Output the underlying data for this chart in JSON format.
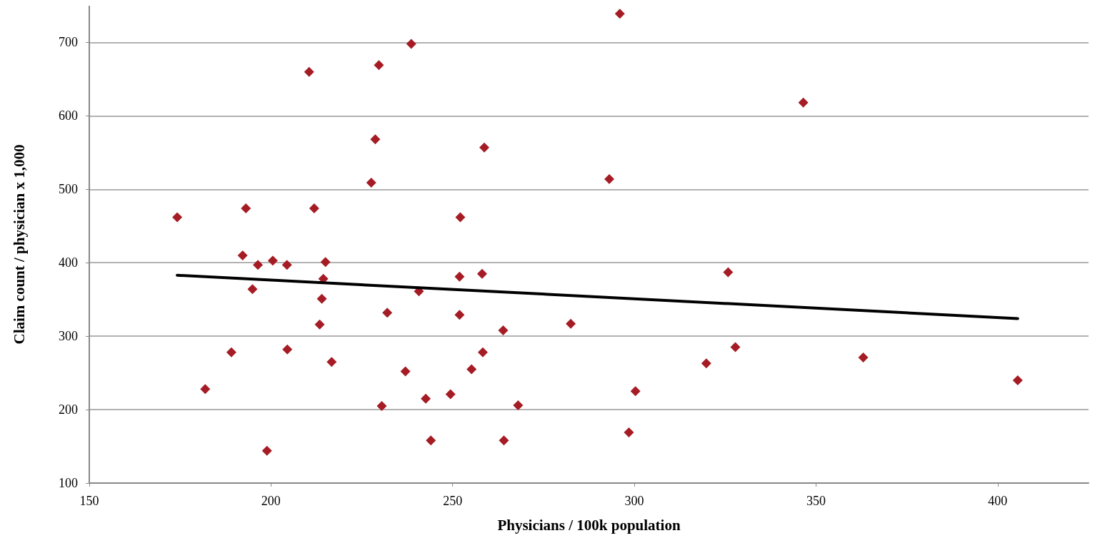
{
  "chart_data": {
    "type": "scatter",
    "xlabel": "Physicians / 100k population",
    "ylabel": "Claim count / physician x 1,000",
    "xlim": [
      150,
      425
    ],
    "xticks": [
      150,
      200,
      250,
      300,
      350,
      400
    ],
    "ylim": [
      100,
      750
    ],
    "yticks": [
      100,
      200,
      300,
      400,
      500,
      600,
      700
    ],
    "grid": "y",
    "marker": "diamond",
    "series": [
      {
        "color": "#a51c24",
        "x": [
          174.2,
          181.9,
          189.1,
          192.2,
          193.1,
          194.9,
          196.4,
          198.9,
          200.5,
          204.4,
          204.5,
          210.5,
          211.9,
          213.4,
          214.0,
          214.4,
          215.0,
          216.7,
          227.6,
          228.7,
          229.7,
          230.5,
          232.0,
          237.0,
          238.6,
          240.7,
          242.6,
          244.0,
          249.4,
          251.9,
          251.9,
          252.1,
          255.2,
          258.1,
          258.3,
          258.7,
          263.9,
          264.1,
          268.0,
          282.5,
          293.1,
          296.0,
          298.5,
          300.3,
          319.8,
          325.8,
          327.8,
          346.5,
          363.0,
          405.5
        ],
        "values": [
          462,
          228,
          278,
          410,
          474,
          364,
          397,
          144,
          403,
          397,
          282,
          660,
          474,
          316,
          351,
          378,
          401,
          265,
          509,
          568,
          669,
          205,
          332,
          252,
          698,
          361,
          215,
          158,
          221,
          329,
          381,
          462,
          255,
          385,
          278,
          557,
          308,
          158,
          206,
          317,
          514,
          739,
          169,
          225,
          263,
          387,
          285,
          618,
          271,
          240
        ]
      },
      {
        "type": "line",
        "color": "#000000",
        "marker": "none",
        "line_style": "solid",
        "x": [
          174.2,
          405.5
        ],
        "values": [
          383,
          324
        ]
      }
    ]
  }
}
